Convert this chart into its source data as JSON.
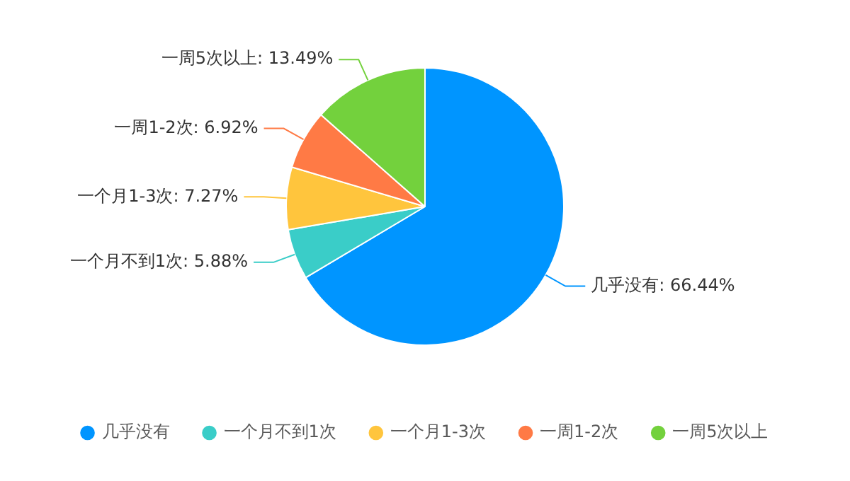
{
  "chart_data": {
    "type": "pie",
    "categories": [
      "几乎没有",
      "一个月不到1次",
      "一个月1-3次",
      "一周1-2次",
      "一周5次以上"
    ],
    "values": [
      66.44,
      5.88,
      7.27,
      6.92,
      13.49
    ],
    "colors": [
      "#0095ff",
      "#3acdc8",
      "#ffc53d",
      "#ff7a45",
      "#73d13d"
    ],
    "value_labels": [
      ": 66.44%",
      ": 5.88%",
      ": 7.27%",
      ": 6.92%",
      ": 13.49%"
    ],
    "legend": "bottom"
  }
}
